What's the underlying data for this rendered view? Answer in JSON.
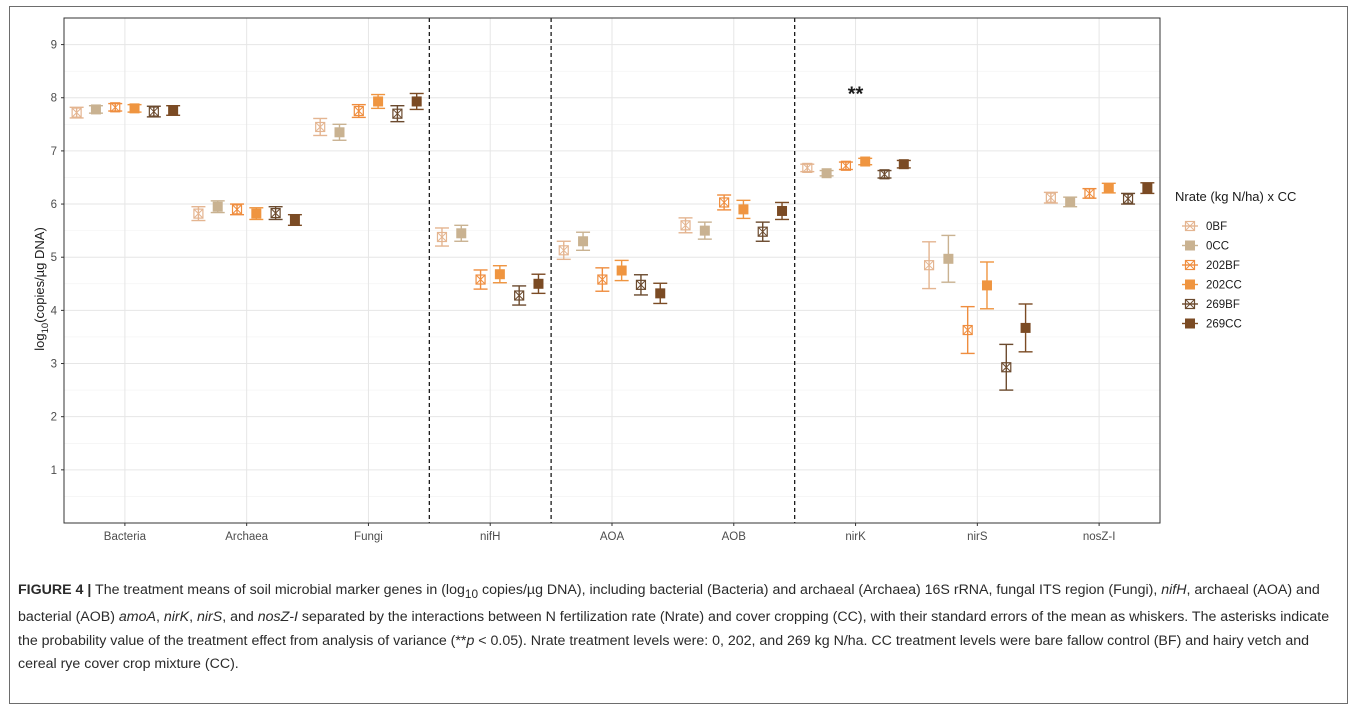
{
  "chart_data": {
    "type": "scatter",
    "ylabel_prefix": "log",
    "ylabel_sub": "10",
    "ylabel_rest": "(copies/µg DNA)",
    "xlabel": "",
    "ylim": [
      0,
      9.5
    ],
    "yticks": [
      1,
      2,
      3,
      4,
      5,
      6,
      7,
      8,
      9
    ],
    "grid": true,
    "legend_position": "right",
    "legend_title": "Nrate (kg N/ha) x CC",
    "categories": [
      "Bacteria",
      "Archaea",
      "Fungi",
      "nifH",
      "AOA",
      "AOB",
      "nirK",
      "nirS",
      "nosZ-I"
    ],
    "separators_after": [
      "Fungi",
      "nifH",
      "AOB"
    ],
    "annotations": [
      {
        "category": "nirK",
        "y": 8.08,
        "text": "**"
      }
    ],
    "series": [
      {
        "name": "0BF",
        "color": "#e4b591",
        "style": "open-cross",
        "mean": [
          7.72,
          5.82,
          7.45,
          5.38,
          5.13,
          5.6,
          6.68,
          4.85,
          6.12
        ],
        "se": [
          0.1,
          0.13,
          0.16,
          0.17,
          0.17,
          0.14,
          0.07,
          0.44,
          0.1
        ]
      },
      {
        "name": "0CC",
        "color": "#c9b291",
        "style": "filled",
        "mean": [
          7.78,
          5.95,
          7.35,
          5.45,
          5.3,
          5.5,
          6.58,
          4.97,
          6.04
        ],
        "se": [
          0.07,
          0.11,
          0.15,
          0.15,
          0.17,
          0.16,
          0.05,
          0.44,
          0.09
        ]
      },
      {
        "name": "202BF",
        "color": "#ef8d3e",
        "style": "open-cross",
        "mean": [
          7.82,
          5.9,
          7.75,
          4.58,
          4.58,
          6.03,
          6.72,
          3.63,
          6.2
        ],
        "se": [
          0.07,
          0.1,
          0.12,
          0.18,
          0.22,
          0.14,
          0.07,
          0.44,
          0.09
        ]
      },
      {
        "name": "202CC",
        "color": "#ef9540",
        "style": "filled",
        "mean": [
          7.8,
          5.82,
          7.93,
          4.68,
          4.75,
          5.9,
          6.8,
          4.47,
          6.3
        ],
        "se": [
          0.07,
          0.11,
          0.13,
          0.16,
          0.19,
          0.17,
          0.06,
          0.44,
          0.09
        ]
      },
      {
        "name": "269BF",
        "color": "#6b4a2e",
        "style": "open-cross",
        "mean": [
          7.74,
          5.83,
          7.7,
          4.28,
          4.48,
          5.48,
          6.56,
          2.93,
          6.1
        ],
        "se": [
          0.1,
          0.12,
          0.15,
          0.18,
          0.19,
          0.18,
          0.07,
          0.43,
          0.1
        ]
      },
      {
        "name": "269CC",
        "color": "#7b4b24",
        "style": "filled",
        "mean": [
          7.76,
          5.7,
          7.93,
          4.5,
          4.32,
          5.87,
          6.75,
          3.67,
          6.3
        ],
        "se": [
          0.09,
          0.1,
          0.15,
          0.18,
          0.19,
          0.16,
          0.07,
          0.45,
          0.1
        ]
      }
    ]
  },
  "caption": {
    "label": "FIGURE 4 |",
    "t1": " The treatment means of soil microbial marker genes in (log",
    "t1_sub": "10",
    "t2": " copies/µg DNA), including bacterial (Bacteria) and archaeal (Archaea) 16S rRNA, fungal ITS region (Fungi), ",
    "i1": "nifH",
    "t3": ", archaeal (AOA) and bacterial (AOB) ",
    "i2": "amoA",
    "t4": ", ",
    "i3": "nirK",
    "t5": ", ",
    "i4": "nirS",
    "t6": ", and ",
    "i5": "nosZ-I",
    "t7": " separated by the interactions between N fertilization rate (Nrate) and cover cropping (CC), with their standard errors of the mean as whiskers. The asterisks indicate the probability value of the treatment effect from analysis of variance (**",
    "i6": "p",
    "t8": " < 0.05). Nrate treatment levels were: 0, 202, and 269 kg N/ha. CC treatment levels were bare fallow control (BF) and hairy vetch and cereal rye cover crop mixture (CC)."
  }
}
